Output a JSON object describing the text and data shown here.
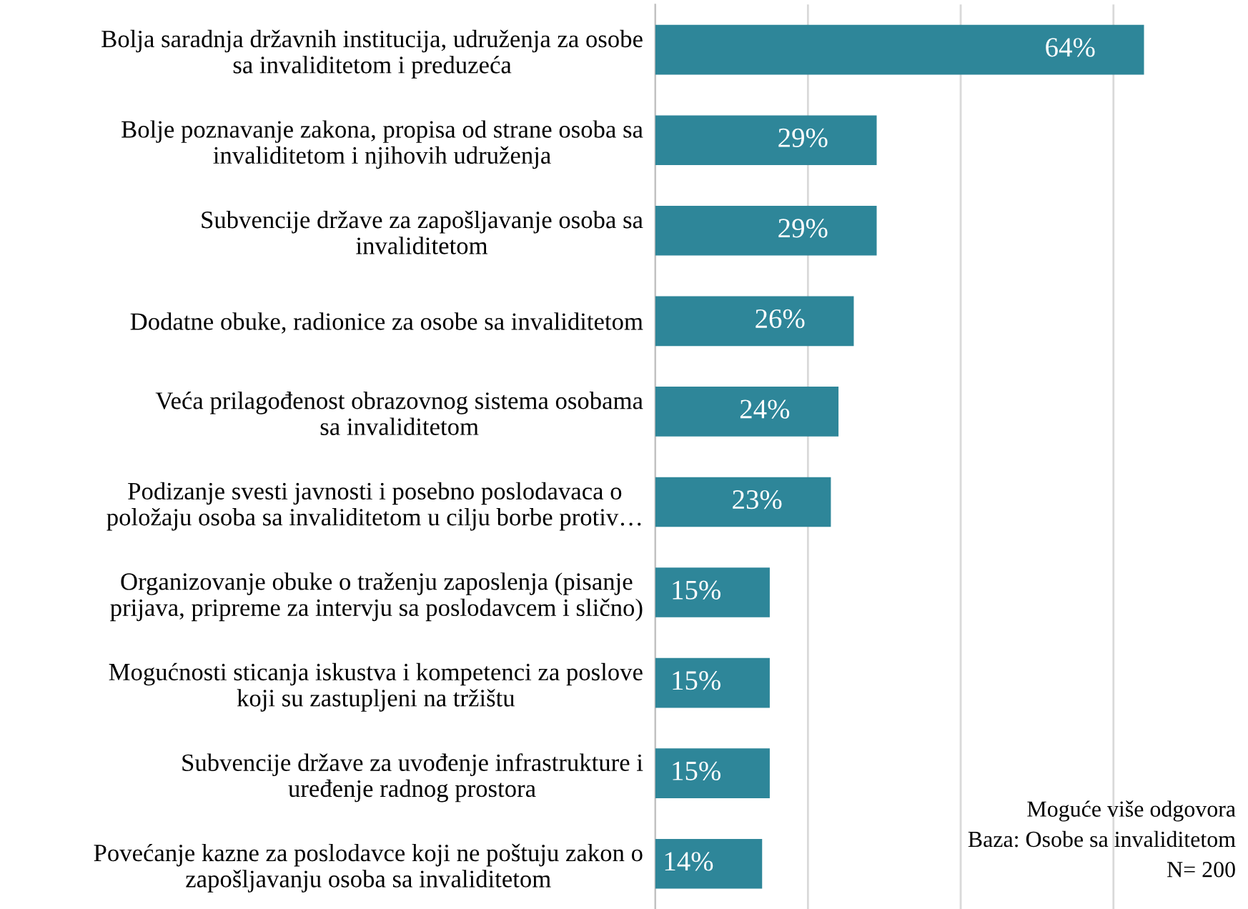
{
  "chart_data": {
    "type": "bar",
    "orientation": "horizontal",
    "categories": [
      "Bolja saradnja državnih institucija, udruženja za osobe\nsa invaliditetom i preduzeća",
      "Bolje poznavanje zakona, propisa od strane osoba sa\ninvaliditetom i njihovih udruženja",
      "Subvencije države za zapošljavanje osoba sa\ninvaliditetom",
      "Dodatne obuke, radionice za osobe sa invaliditetom",
      "Veća prilagođenost obrazovnog sistema osobama\nsa invaliditetom",
      "Podizanje svesti javnosti i posebno poslodavaca o\npoložaju osoba sa invaliditetom u cilju borbe protiv…",
      "Organizovanje obuke o traženju zaposlenja (pisanje\nprijava, pripreme za intervju sa poslodavcem i slično)",
      "Mogućnosti sticanja iskustva i kompetenci za poslove\nkoji su zastupljeni na tržištu",
      "Subvencije države za uvođenje infrastrukture i\nuređenje radnog prostora",
      "Povećanje kazne za poslodavce koji ne poštuju zakon o\nzapošljavanju osoba sa invaliditetom"
    ],
    "values": [
      64,
      29,
      29,
      26,
      24,
      23,
      15,
      15,
      15,
      14
    ],
    "value_labels": [
      "64%",
      "29%",
      "29%",
      "26%",
      "24%",
      "23%",
      "15%",
      "15%",
      "15%",
      "14%"
    ],
    "color": "#2e8699",
    "xticks": [
      {
        "value": 0,
        "label": null
      },
      {
        "value": 20,
        "label": null
      },
      {
        "value": 40,
        "label": null
      },
      {
        "value": 60,
        "label": null
      }
    ],
    "grid": "x",
    "tick_labels": "y",
    "annotations": [
      "Moguće više odgovora\nBaza: Osobe sa invaliditetom\nN= 200"
    ]
  }
}
